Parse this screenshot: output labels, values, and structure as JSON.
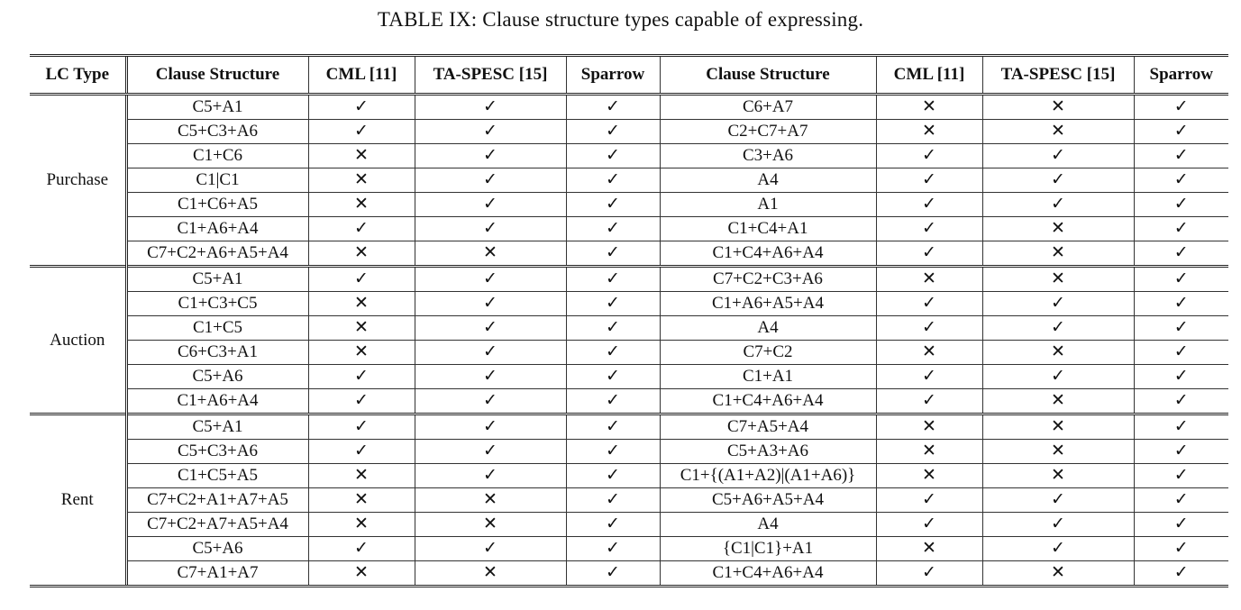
{
  "caption": "TABLE IX: Clause structure types capable of expressing.",
  "headers": [
    "LC Type",
    "Clause Structure",
    "CML [11]",
    "TA-SPESC [15]",
    "Sparrow",
    "Clause Structure",
    "CML [11]",
    "TA-SPESC [15]",
    "Sparrow"
  ],
  "symbols": {
    "yes": "✓",
    "no": "✕"
  },
  "groups": [
    {
      "type": "Purchase",
      "rows": [
        [
          "C5+A1",
          "yes",
          "yes",
          "yes",
          "C6+A7",
          "no",
          "no",
          "yes"
        ],
        [
          "C5+C3+A6",
          "yes",
          "yes",
          "yes",
          "C2+C7+A7",
          "no",
          "no",
          "yes"
        ],
        [
          "C1+C6",
          "no",
          "yes",
          "yes",
          "C3+A6",
          "yes",
          "yes",
          "yes"
        ],
        [
          "C1|C1",
          "no",
          "yes",
          "yes",
          "A4",
          "yes",
          "yes",
          "yes"
        ],
        [
          "C1+C6+A5",
          "no",
          "yes",
          "yes",
          "A1",
          "yes",
          "yes",
          "yes"
        ],
        [
          "C1+A6+A4",
          "yes",
          "yes",
          "yes",
          "C1+C4+A1",
          "yes",
          "no",
          "yes"
        ],
        [
          "C7+C2+A6+A5+A4",
          "no",
          "no",
          "yes",
          "C1+C4+A6+A4",
          "yes",
          "no",
          "yes"
        ]
      ]
    },
    {
      "type": "Auction",
      "rows": [
        [
          "C5+A1",
          "yes",
          "yes",
          "yes",
          "C7+C2+C3+A6",
          "no",
          "no",
          "yes"
        ],
        [
          "C1+C3+C5",
          "no",
          "yes",
          "yes",
          "C1+A6+A5+A4",
          "yes",
          "yes",
          "yes"
        ],
        [
          "C1+C5",
          "no",
          "yes",
          "yes",
          "A4",
          "yes",
          "yes",
          "yes"
        ],
        [
          "C6+C3+A1",
          "no",
          "yes",
          "yes",
          "C7+C2",
          "no",
          "no",
          "yes"
        ],
        [
          "C5+A6",
          "yes",
          "yes",
          "yes",
          "C1+A1",
          "yes",
          "yes",
          "yes"
        ],
        [
          "C1+A6+A4",
          "yes",
          "yes",
          "yes",
          "C1+C4+A6+A4",
          "yes",
          "no",
          "yes"
        ]
      ]
    },
    {
      "type": "Rent",
      "rows": [
        [
          "C5+A1",
          "yes",
          "yes",
          "yes",
          "C7+A5+A4",
          "no",
          "no",
          "yes"
        ],
        [
          "C5+C3+A6",
          "yes",
          "yes",
          "yes",
          "C5+A3+A6",
          "no",
          "no",
          "yes"
        ],
        [
          "C1+C5+A5",
          "no",
          "yes",
          "yes",
          "C1+{(A1+A2)|(A1+A6)}",
          "no",
          "no",
          "yes"
        ],
        [
          "C7+C2+A1+A7+A5",
          "no",
          "no",
          "yes",
          "C5+A6+A5+A4",
          "yes",
          "yes",
          "yes"
        ],
        [
          "C7+C2+A7+A5+A4",
          "no",
          "no",
          "yes",
          "A4",
          "yes",
          "yes",
          "yes"
        ],
        [
          "C5+A6",
          "yes",
          "yes",
          "yes",
          "{C1|C1}+A1",
          "no",
          "yes",
          "yes"
        ],
        [
          "C7+A1+A7",
          "no",
          "no",
          "yes",
          "C1+C4+A6+A4",
          "yes",
          "no",
          "yes"
        ]
      ]
    }
  ]
}
